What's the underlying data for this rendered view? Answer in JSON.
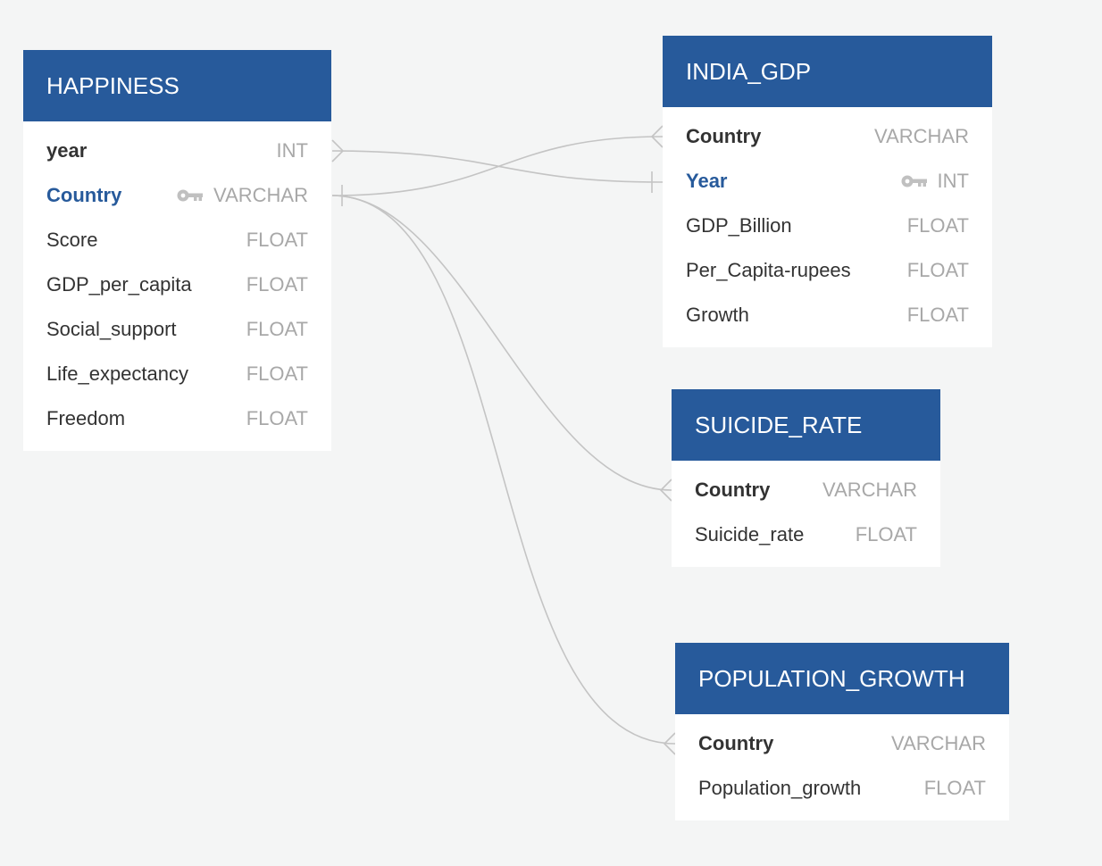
{
  "tables": [
    {
      "id": "happiness",
      "title": "HAPPINESS",
      "fields": [
        {
          "name": "year",
          "type": "INT",
          "style": "bold"
        },
        {
          "name": "Country",
          "type": "VARCHAR",
          "style": "key",
          "key_icon": "key-icon"
        },
        {
          "name": "Score",
          "type": "FLOAT",
          "style": "normal"
        },
        {
          "name": "GDP_per_capita",
          "type": "FLOAT",
          "style": "normal"
        },
        {
          "name": "Social_support",
          "type": "FLOAT",
          "style": "normal"
        },
        {
          "name": "Life_expectancy",
          "type": "FLOAT",
          "style": "normal"
        },
        {
          "name": "Freedom",
          "type": "FLOAT",
          "style": "normal"
        }
      ]
    },
    {
      "id": "india_gdp",
      "title": "INDIA_GDP",
      "fields": [
        {
          "name": "Country",
          "type": "VARCHAR",
          "style": "bold"
        },
        {
          "name": "Year",
          "type": "INT",
          "style": "key",
          "key_icon": "key-icon"
        },
        {
          "name": "GDP_Billion",
          "type": "FLOAT",
          "style": "normal"
        },
        {
          "name": "Per_Capita-rupees",
          "type": "FLOAT",
          "style": "normal"
        },
        {
          "name": "Growth",
          "type": "FLOAT",
          "style": "normal"
        }
      ]
    },
    {
      "id": "suicide_rate",
      "title": "SUICIDE_RATE",
      "fields": [
        {
          "name": "Country",
          "type": "VARCHAR",
          "style": "bold"
        },
        {
          "name": "Suicide_rate",
          "type": "FLOAT",
          "style": "normal"
        }
      ]
    },
    {
      "id": "population_growth",
      "title": "POPULATION_GROWTH",
      "fields": [
        {
          "name": "Country",
          "type": "VARCHAR",
          "style": "bold"
        },
        {
          "name": "Population_growth",
          "type": "FLOAT",
          "style": "normal"
        }
      ]
    }
  ],
  "relationships": [
    {
      "from_table": "HAPPINESS",
      "from_field": "year",
      "from_end": "many",
      "to_table": "INDIA_GDP",
      "to_field": "Year",
      "to_end": "one"
    },
    {
      "from_table": "HAPPINESS",
      "from_field": "Country",
      "from_end": "one",
      "to_table": "INDIA_GDP",
      "to_field": "Country",
      "to_end": "many"
    },
    {
      "from_table": "HAPPINESS",
      "from_field": "Country",
      "from_end": "one",
      "to_table": "SUICIDE_RATE",
      "to_field": "Country",
      "to_end": "many"
    },
    {
      "from_table": "HAPPINESS",
      "from_field": "Country",
      "from_end": "one",
      "to_table": "POPULATION_GROWTH",
      "to_field": "Country",
      "to_end": "many"
    }
  ],
  "colors": {
    "background": "#f4f5f5",
    "header": "#275a9b",
    "header_text": "#ffffff",
    "key_field": "#275a9b",
    "field_text": "#333333",
    "type_text": "#a8a8a8",
    "connector": "#c4c4c4"
  }
}
